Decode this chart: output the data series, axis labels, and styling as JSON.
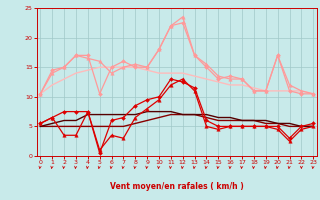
{
  "xlabel": "Vent moyen/en rafales ( km/h )",
  "x": [
    0,
    1,
    2,
    3,
    4,
    5,
    6,
    7,
    8,
    9,
    10,
    11,
    12,
    13,
    14,
    15,
    16,
    17,
    18,
    19,
    20,
    21,
    22,
    23
  ],
  "lines": [
    {
      "y": [
        5.5,
        6.5,
        7.5,
        7.5,
        7.5,
        0.5,
        6,
        6.5,
        8.5,
        9.5,
        10,
        13,
        12.5,
        11.5,
        6,
        5,
        5,
        5,
        5,
        5,
        5,
        3,
        5,
        5.5
      ],
      "color": "#dd0000",
      "lw": 0.9,
      "marker": "D",
      "ms": 2.0,
      "zorder": 5
    },
    {
      "y": [
        5.5,
        6.5,
        3.5,
        3.5,
        7.5,
        1,
        3.5,
        3,
        6.5,
        8,
        9.5,
        12,
        13,
        11,
        5,
        4.5,
        5,
        5,
        5,
        5,
        4.5,
        2.5,
        4.5,
        5
      ],
      "color": "#dd0000",
      "lw": 0.9,
      "marker": "^",
      "ms": 2.5,
      "zorder": 5
    },
    {
      "y": [
        5,
        5,
        5,
        5,
        5,
        5,
        5,
        5,
        5.5,
        6,
        6.5,
        7,
        7,
        7,
        6.5,
        6,
        6,
        6,
        6,
        5.5,
        5.5,
        5,
        5,
        5
      ],
      "color": "#880000",
      "lw": 1.0,
      "marker": null,
      "ms": 0,
      "zorder": 3
    },
    {
      "y": [
        5,
        5.5,
        6,
        6,
        7,
        7,
        7,
        7,
        7,
        7.5,
        7.5,
        7.5,
        7,
        7,
        7,
        6.5,
        6.5,
        6,
        6,
        6,
        5.5,
        5.5,
        5,
        5
      ],
      "color": "#550000",
      "lw": 1.0,
      "marker": null,
      "ms": 0,
      "zorder": 3
    },
    {
      "y": [
        10.5,
        14.5,
        15,
        17,
        17,
        10.5,
        15,
        16,
        15,
        15,
        18,
        22,
        22.5,
        17,
        15,
        13,
        13.5,
        13,
        11,
        11,
        17,
        11,
        10.5,
        10.5
      ],
      "color": "#ff9999",
      "lw": 0.9,
      "marker": "D",
      "ms": 2.0,
      "zorder": 4
    },
    {
      "y": [
        10.5,
        14,
        15,
        17,
        16.5,
        16,
        14,
        15,
        15.5,
        15,
        18,
        22,
        23.5,
        17,
        15.5,
        13.5,
        13,
        13,
        11,
        11,
        17,
        12,
        11,
        10.5
      ],
      "color": "#ff9999",
      "lw": 0.9,
      "marker": "^",
      "ms": 2.5,
      "zorder": 4
    },
    {
      "y": [
        10.5,
        12,
        13,
        14,
        14.5,
        15,
        15,
        15,
        15,
        14.5,
        14,
        14,
        14,
        13.5,
        13,
        12.5,
        12,
        12,
        11.5,
        11,
        11,
        11,
        11,
        10.5
      ],
      "color": "#ffbbbb",
      "lw": 1.0,
      "marker": null,
      "ms": 0,
      "zorder": 2
    }
  ],
  "ylim": [
    0,
    25
  ],
  "xlim": [
    -0.3,
    23.3
  ],
  "yticks": [
    0,
    5,
    10,
    15,
    20,
    25
  ],
  "xticks": [
    0,
    1,
    2,
    3,
    4,
    5,
    6,
    7,
    8,
    9,
    10,
    11,
    12,
    13,
    14,
    15,
    16,
    17,
    18,
    19,
    20,
    21,
    22,
    23
  ],
  "bg_color": "#c8eaea",
  "grid_color": "#a0c8c8",
  "tick_color": "#cc0000",
  "label_color": "#cc0000",
  "arrow_color": "#cc0000",
  "arrow_angles_deg": [
    225,
    225,
    225,
    225,
    225,
    270,
    225,
    225,
    225,
    225,
    225,
    225,
    225,
    225,
    225,
    225,
    200,
    225,
    225,
    225,
    225,
    225,
    180,
    215
  ]
}
